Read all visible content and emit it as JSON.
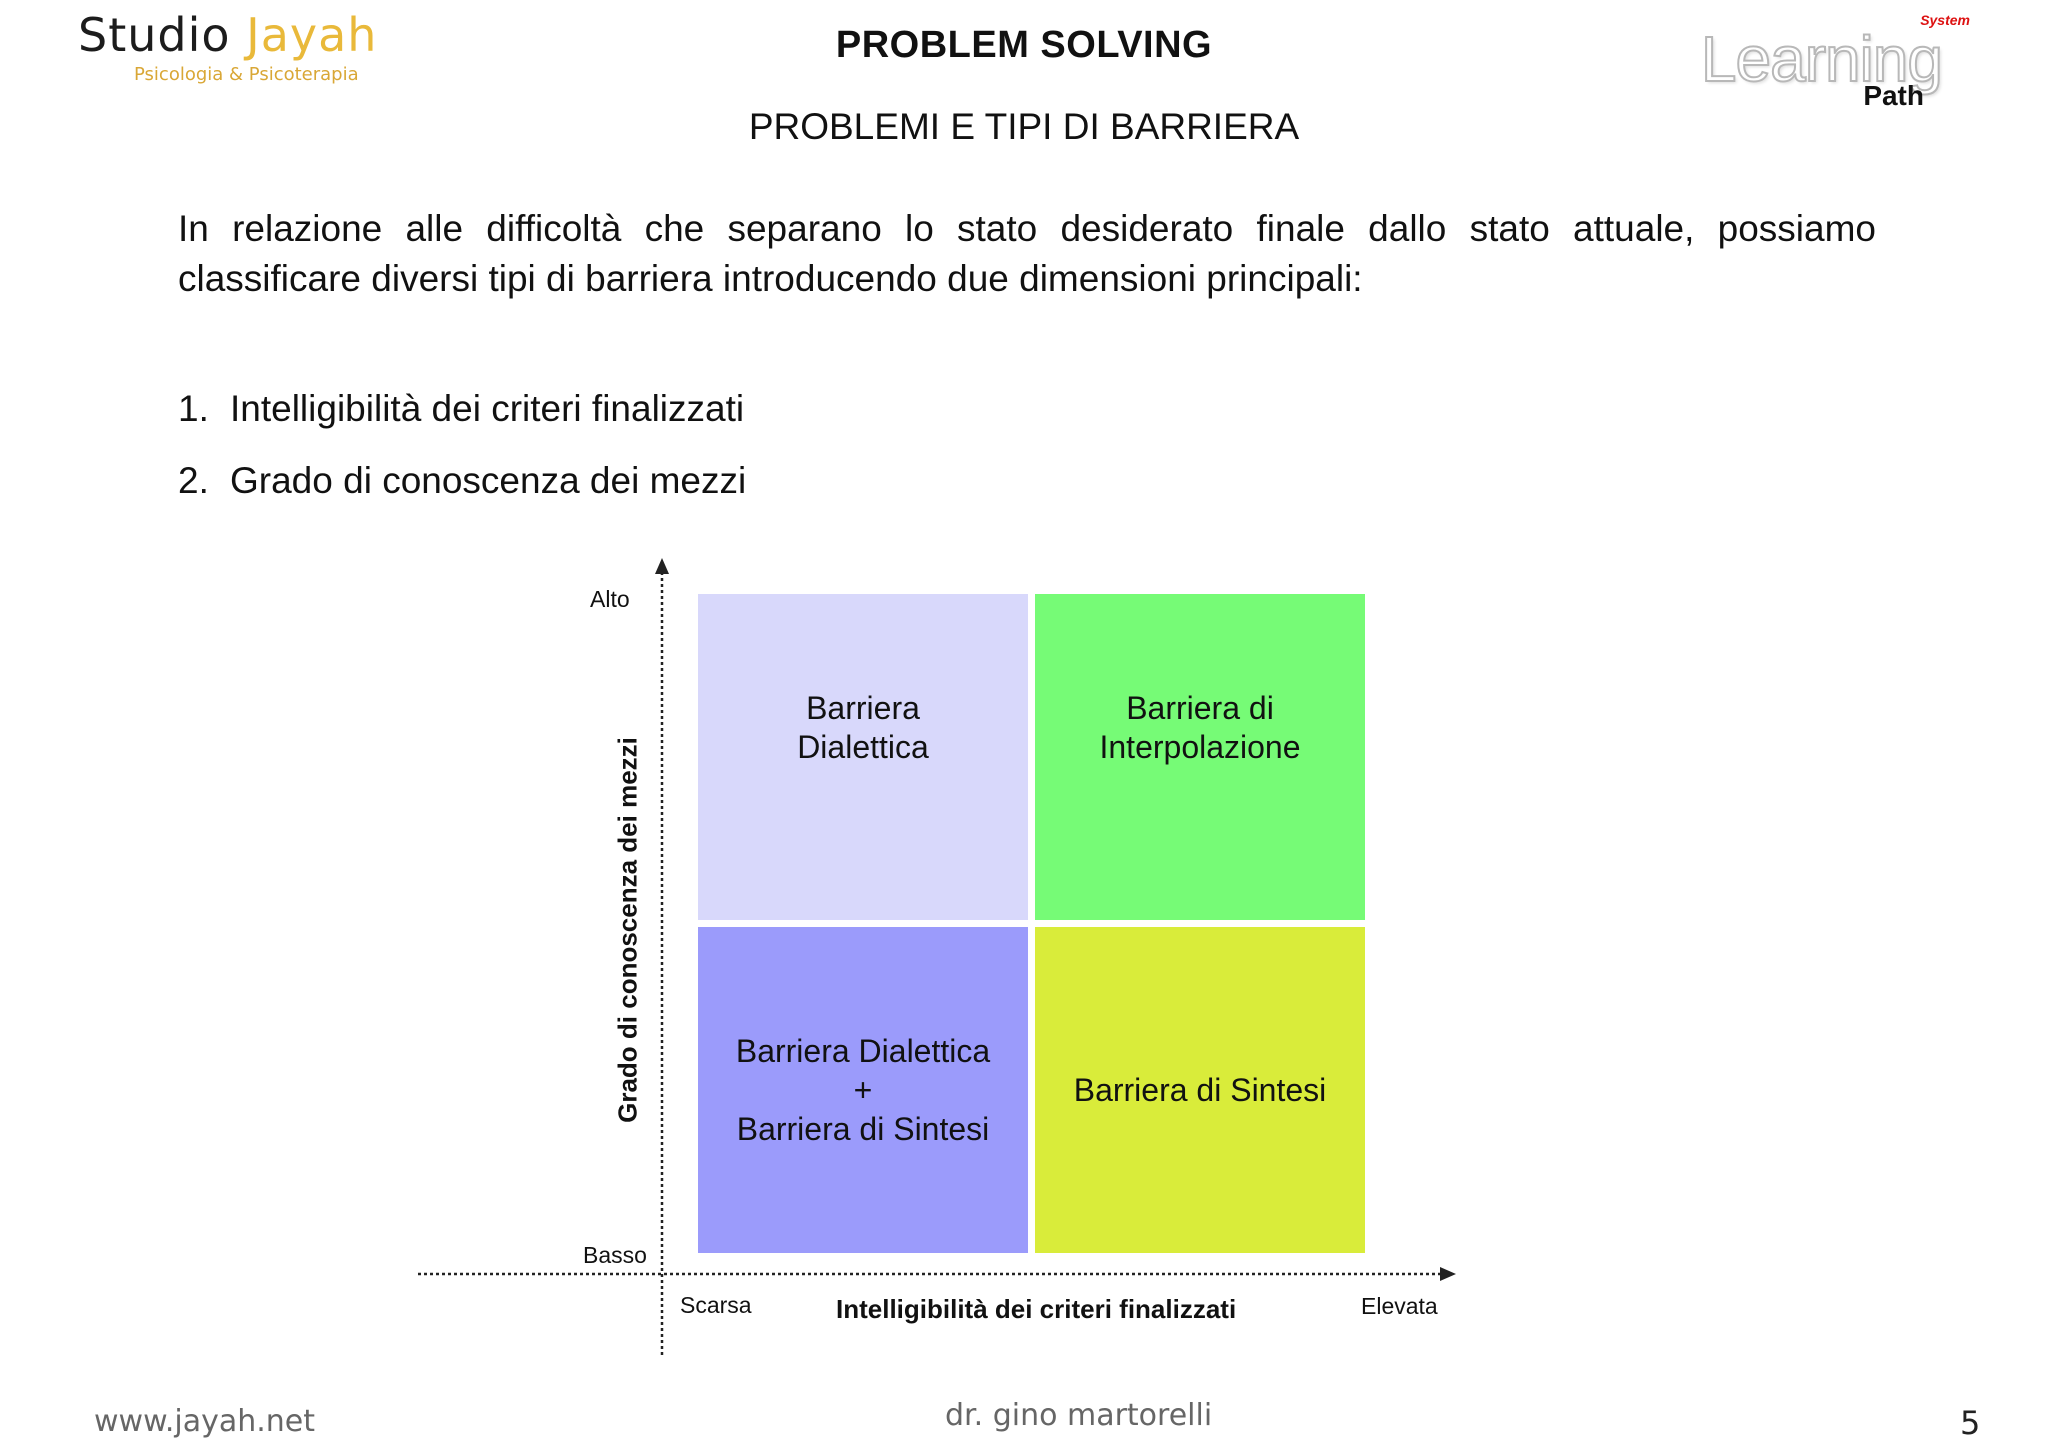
{
  "header": {
    "logo_left_name_dark": "Studio",
    "logo_left_name_gold": "Jayah",
    "logo_left_subtitle": "Psicologia & Psicoterapia",
    "title": "PROBLEM SOLVING",
    "subtitle": "PROBLEMI E TIPI DI BARRIERA",
    "logo_right_system": "System",
    "logo_right_learning": "Learning",
    "logo_right_path": "Path"
  },
  "intro": "In relazione alle difficoltà che separano lo stato desiderato finale dallo stato attuale, possiamo classificare diversi tipi di barriera introducendo due dimensioni principali:",
  "list": [
    {
      "num": "1.",
      "text": "Intelligibilità dei criteri finalizzati"
    },
    {
      "num": "2.",
      "text": "Grado di conoscenza dei mezzi"
    }
  ],
  "diagram": {
    "y_axis_label": "Grado di conoscenza dei mezzi",
    "y_high": "Alto",
    "y_low": "Basso",
    "x_axis_label": "Intelligibilità dei criteri finalizzati",
    "x_low": "Scarsa",
    "x_high": "Elevata",
    "quadrants": {
      "top_left": [
        "Barriera",
        "Dialettica"
      ],
      "top_right": [
        "Barriera di",
        "Interpolazione"
      ],
      "bottom_left": [
        "Barriera Dialettica",
        "+",
        "Barriera di Sintesi"
      ],
      "bottom_right": [
        "Barriera di Sintesi"
      ]
    },
    "colors": {
      "top_left": "#d8d8fb",
      "top_right": "#76fb76",
      "bottom_left": "#9b9bfb",
      "bottom_right": "#d9ec3a"
    }
  },
  "footer": {
    "website": "www.jayah.net",
    "author": "dr. gino martorelli",
    "page": "5"
  }
}
